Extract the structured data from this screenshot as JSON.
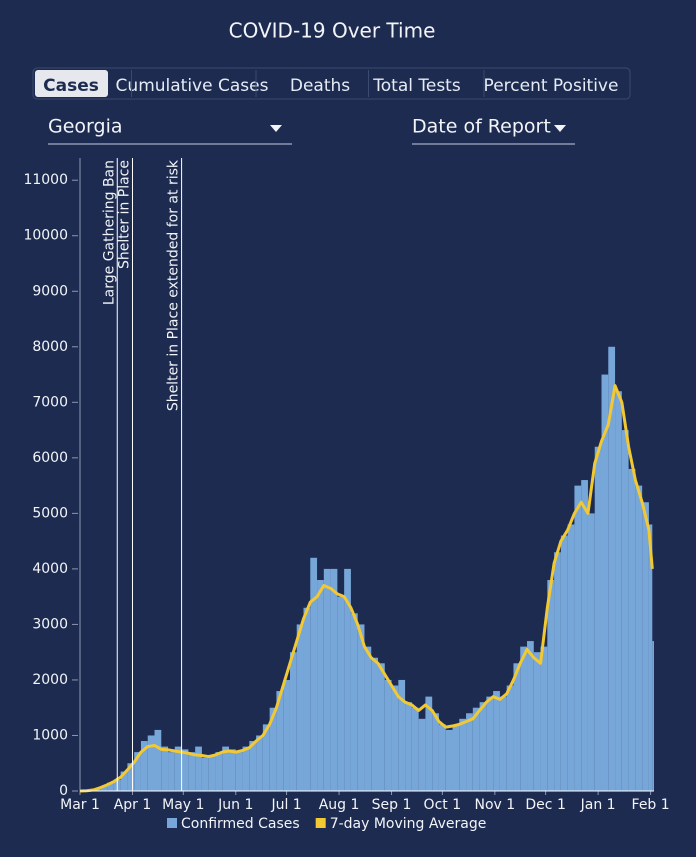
{
  "header": {
    "title": "COVID-19 Over Time"
  },
  "tabs": [
    "Cases",
    "Cumulative Cases",
    "Deaths",
    "Total Tests",
    "Percent Positive"
  ],
  "dropdowns": {
    "region": "Georgia",
    "date_basis": "Date of Report"
  },
  "chart_data": {
    "type": "bar",
    "x": [
      0,
      4,
      8,
      12,
      16,
      20,
      24,
      28,
      32,
      36,
      40,
      44,
      48,
      52,
      56,
      60,
      64,
      68,
      72,
      76,
      80,
      84,
      88,
      92,
      96,
      100,
      104,
      108,
      112,
      116,
      120,
      124,
      128,
      132,
      136,
      140,
      144,
      148,
      152,
      156,
      160,
      164,
      168,
      172,
      176,
      180,
      184,
      188,
      192,
      196,
      200,
      204,
      208,
      212,
      216,
      220,
      224,
      228,
      232,
      236,
      240,
      244,
      248,
      252,
      256,
      260,
      264,
      268,
      272,
      276,
      280,
      284,
      288,
      292,
      296,
      300,
      304,
      308,
      312,
      316,
      320,
      324,
      328,
      332,
      336,
      338
    ],
    "series": [
      {
        "name": "Confirmed Cases",
        "type": "bar",
        "color": "#77a6d8",
        "values": [
          0,
          10,
          30,
          80,
          150,
          200,
          350,
          500,
          700,
          900,
          1000,
          1100,
          800,
          700,
          800,
          750,
          700,
          800,
          600,
          650,
          700,
          800,
          750,
          700,
          800,
          900,
          1000,
          1200,
          1500,
          1800,
          2000,
          2500,
          3000,
          3300,
          4200,
          3800,
          4000,
          4000,
          3500,
          4000,
          3200,
          3000,
          2600,
          2400,
          2300,
          2000,
          1900,
          2000,
          1600,
          1500,
          1300,
          1700,
          1400,
          1200,
          1100,
          1200,
          1300,
          1400,
          1500,
          1600,
          1700,
          1800,
          1700,
          1900,
          2300,
          2600,
          2700,
          2500,
          2600,
          3800,
          4300,
          4600,
          4800,
          5500,
          5600,
          5000,
          6200,
          7500,
          8000,
          7200,
          6500,
          5800,
          5500,
          5200,
          4800,
          2700
        ]
      },
      {
        "name": "7-day Moving Average",
        "type": "line",
        "color": "#f2c933",
        "values": [
          0,
          5,
          20,
          60,
          110,
          170,
          250,
          380,
          520,
          700,
          800,
          820,
          750,
          740,
          720,
          700,
          680,
          650,
          640,
          620,
          650,
          700,
          720,
          700,
          730,
          780,
          900,
          1000,
          1200,
          1500,
          1900,
          2300,
          2700,
          3100,
          3400,
          3500,
          3700,
          3650,
          3550,
          3500,
          3300,
          3000,
          2600,
          2400,
          2300,
          2100,
          1900,
          1700,
          1600,
          1550,
          1450,
          1550,
          1450,
          1250,
          1150,
          1170,
          1200,
          1250,
          1300,
          1450,
          1600,
          1700,
          1650,
          1750,
          2000,
          2300,
          2550,
          2400,
          2300,
          3300,
          4100,
          4500,
          4700,
          5000,
          5200,
          5000,
          5900,
          6300,
          6600,
          7300,
          7000,
          6200,
          5600,
          5200,
          4700,
          4000
        ]
      }
    ],
    "xlim": [
      0,
      339
    ],
    "xticks": [
      {
        "value": 0,
        "label": "Mar 1"
      },
      {
        "value": 31,
        "label": "Apr 1"
      },
      {
        "value": 61,
        "label": "May 1"
      },
      {
        "value": 92,
        "label": "Jun 1"
      },
      {
        "value": 122,
        "label": "Jul 1"
      },
      {
        "value": 153,
        "label": "Aug 1"
      },
      {
        "value": 184,
        "label": "Sep 1"
      },
      {
        "value": 214,
        "label": "Oct 1"
      },
      {
        "value": 245,
        "label": "Nov 1"
      },
      {
        "value": 275,
        "label": "Dec 1"
      },
      {
        "value": 306,
        "label": "Jan 1"
      },
      {
        "value": 337,
        "label": "Feb 1"
      }
    ],
    "ylim": [
      0,
      11400
    ],
    "yticks": [
      0,
      1000,
      2000,
      3000,
      4000,
      5000,
      6000,
      7000,
      8000,
      9000,
      10000,
      11000
    ],
    "annotations": [
      {
        "text": "Large Gathering Ban",
        "x": 22
      },
      {
        "text": "Shelter in Place",
        "x": 31
      },
      {
        "text": "Shelter in Place extended for at risk",
        "x": 60
      }
    ]
  }
}
